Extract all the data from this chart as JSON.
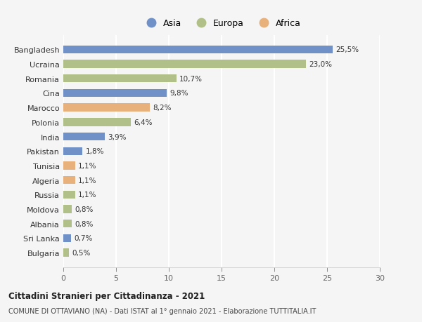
{
  "countries": [
    "Bangladesh",
    "Ucraina",
    "Romania",
    "Cina",
    "Marocco",
    "Polonia",
    "India",
    "Pakistan",
    "Tunisia",
    "Algeria",
    "Russia",
    "Moldova",
    "Albania",
    "Sri Lanka",
    "Bulgaria"
  ],
  "values": [
    25.5,
    23.0,
    10.7,
    9.8,
    8.2,
    6.4,
    3.9,
    1.8,
    1.1,
    1.1,
    1.1,
    0.8,
    0.8,
    0.7,
    0.5
  ],
  "labels": [
    "25,5%",
    "23,0%",
    "10,7%",
    "9,8%",
    "8,2%",
    "6,4%",
    "3,9%",
    "1,8%",
    "1,1%",
    "1,1%",
    "1,1%",
    "0,8%",
    "0,8%",
    "0,7%",
    "0,5%"
  ],
  "continents": [
    "Asia",
    "Europa",
    "Europa",
    "Asia",
    "Africa",
    "Europa",
    "Asia",
    "Asia",
    "Africa",
    "Africa",
    "Europa",
    "Europa",
    "Europa",
    "Asia",
    "Europa"
  ],
  "colors": {
    "Asia": "#7090c8",
    "Europa": "#b0c088",
    "Africa": "#e8b07a"
  },
  "xlim": [
    0,
    30
  ],
  "xticks": [
    0,
    5,
    10,
    15,
    20,
    25,
    30
  ],
  "title": "Cittadini Stranieri per Cittadinanza - 2021",
  "subtitle": "COMUNE DI OTTAVIANO (NA) - Dati ISTAT al 1° gennaio 2021 - Elaborazione TUTTITALIA.IT",
  "bg_color": "#f5f5f5",
  "bar_height": 0.55
}
